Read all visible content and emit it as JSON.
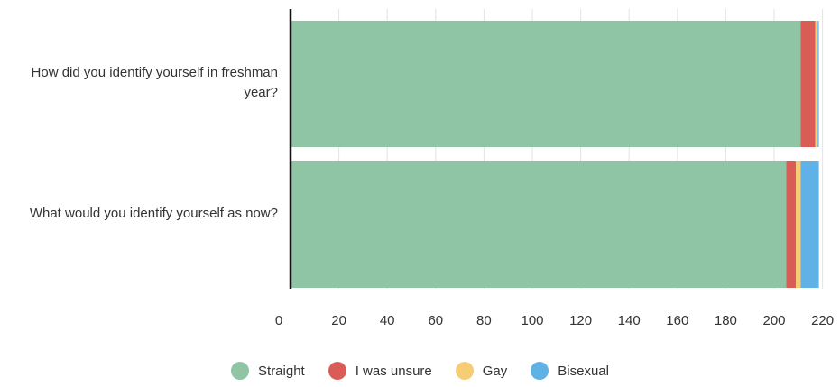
{
  "chart_data": {
    "type": "bar",
    "orientation": "horizontal",
    "stacked": true,
    "categories": [
      "How did you identify yourself in freshman year?",
      "What would you identify yourself as now?"
    ],
    "series": [
      {
        "name": "Straight",
        "color": "#8fc4a5",
        "values": [
          211,
          205
        ]
      },
      {
        "name": "I was unsure",
        "color": "#da5c57",
        "values": [
          6,
          4
        ]
      },
      {
        "name": "Gay",
        "color": "#f5cd74",
        "values": [
          1,
          2
        ]
      },
      {
        "name": "Bisexual",
        "color": "#5fb1e6",
        "values": [
          0.5,
          7.5
        ]
      }
    ],
    "x_ticks": [
      0,
      20,
      40,
      60,
      80,
      100,
      120,
      140,
      160,
      180,
      200,
      220
    ],
    "xlim": [
      0,
      225
    ],
    "grid": true,
    "legend_position": "bottom"
  }
}
